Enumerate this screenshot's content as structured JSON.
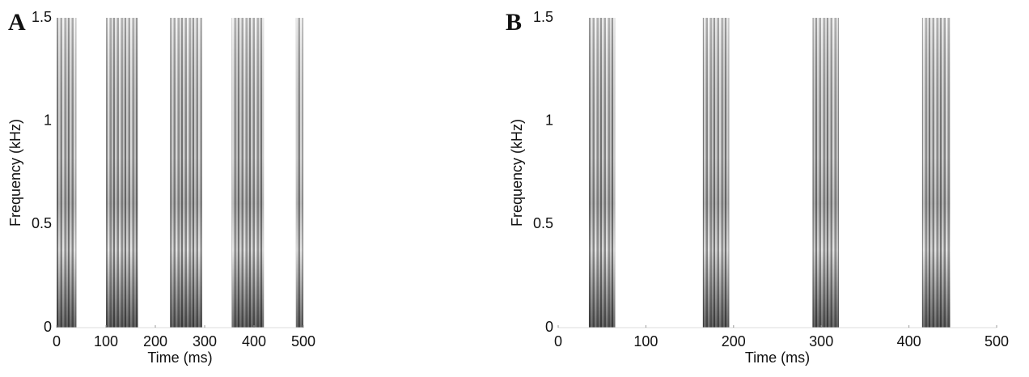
{
  "chart_data": [
    {
      "type": "spectrogram",
      "panel": "A",
      "xlabel": "Time (ms)",
      "ylabel": "Frequency (kHz)",
      "xlim": [
        0,
        500
      ],
      "ylim": [
        0,
        1.5
      ],
      "xticks": [
        0,
        100,
        200,
        300,
        400,
        500
      ],
      "yticks": [
        0,
        0.5,
        1,
        1.5
      ],
      "segments": [
        [
          0,
          40
        ],
        [
          100,
          165
        ],
        [
          230,
          295
        ],
        [
          355,
          420
        ],
        [
          485,
          500
        ]
      ]
    },
    {
      "type": "spectrogram",
      "panel": "B",
      "xlabel": "Time (ms)",
      "ylabel": "Frequency (kHz)",
      "xlim": [
        0,
        500
      ],
      "ylim": [
        0,
        1.5
      ],
      "xticks": [
        0,
        100,
        200,
        300,
        400,
        500
      ],
      "yticks": [
        0,
        0.5,
        1,
        1.5
      ],
      "segments": [
        [
          35,
          65
        ],
        [
          165,
          195
        ],
        [
          290,
          320
        ],
        [
          415,
          447
        ]
      ]
    }
  ]
}
